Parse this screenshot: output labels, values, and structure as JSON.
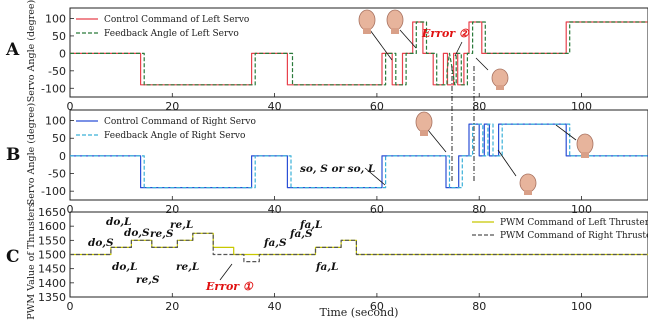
{
  "chart_data": [
    {
      "type": "line",
      "panel_label": "A",
      "ylabel": "Servo Angle (degree)",
      "xlim": [
        0,
        113
      ],
      "ylim": [
        -125,
        130
      ],
      "yticks": [
        -100,
        -50,
        0,
        50,
        100
      ],
      "xticks": [
        0,
        20,
        40,
        60,
        80,
        100
      ],
      "xticklabels": [
        "0",
        "20",
        "40",
        "60",
        "80",
        "100"
      ],
      "grid": false,
      "legend": "top-left",
      "series": [
        {
          "name": "Control Command of Left Servo",
          "color": "#e8414c",
          "dash": "solid",
          "points": [
            [
              0,
              0
            ],
            [
              13.8,
              0
            ],
            [
              13.8,
              -90
            ],
            [
              35.5,
              -90
            ],
            [
              35.5,
              0
            ],
            [
              42.5,
              0
            ],
            [
              42.5,
              -90
            ],
            [
              61,
              -90
            ],
            [
              61,
              0
            ],
            [
              63,
              0
            ],
            [
              63,
              -90
            ],
            [
              65,
              -90
            ],
            [
              65,
              0
            ],
            [
              67,
              0
            ],
            [
              67,
              90
            ],
            [
              69,
              90
            ],
            [
              69,
              0
            ],
            [
              71,
              0
            ],
            [
              71,
              -90
            ],
            [
              73,
              -90
            ],
            [
              73,
              0
            ],
            [
              73.8,
              0
            ],
            [
              73.8,
              -90
            ],
            [
              75,
              -90
            ],
            [
              75,
              0
            ],
            [
              75.8,
              0
            ],
            [
              75.8,
              -90
            ],
            [
              77,
              -90
            ],
            [
              77,
              0
            ],
            [
              78,
              0
            ],
            [
              78,
              90
            ],
            [
              80.5,
              90
            ],
            [
              80.5,
              0
            ],
            [
              97,
              0
            ],
            [
              97,
              90
            ],
            [
              113,
              90
            ]
          ]
        },
        {
          "name": "Feedback Angle of Left Servo",
          "color": "#2a7a3a",
          "dash": "dashed",
          "points": [
            [
              0,
              0
            ],
            [
              14.5,
              0
            ],
            [
              14.5,
              -90
            ],
            [
              36.2,
              -90
            ],
            [
              36.2,
              0
            ],
            [
              43.5,
              0
            ],
            [
              43.5,
              -90
            ],
            [
              61.7,
              -90
            ],
            [
              61.7,
              0
            ],
            [
              63.7,
              0
            ],
            [
              63.7,
              -90
            ],
            [
              65.7,
              -90
            ],
            [
              65.7,
              0
            ],
            [
              67.7,
              0
            ],
            [
              67.7,
              90
            ],
            [
              69.7,
              90
            ],
            [
              69.7,
              0
            ],
            [
              71.7,
              0
            ],
            [
              71.7,
              -90
            ],
            [
              73.7,
              -90
            ],
            [
              73.7,
              -50
            ],
            [
              74.2,
              0
            ],
            [
              74.8,
              -50
            ],
            [
              75.2,
              -90
            ],
            [
              75.5,
              -90
            ],
            [
              75.5,
              0
            ],
            [
              76.5,
              0
            ],
            [
              76.5,
              -90
            ],
            [
              77.7,
              -90
            ],
            [
              77.7,
              0
            ],
            [
              78.7,
              0
            ],
            [
              78.7,
              90
            ],
            [
              81.2,
              90
            ],
            [
              81.2,
              0
            ],
            [
              97.7,
              0
            ],
            [
              97.7,
              90
            ],
            [
              113,
              90
            ]
          ]
        }
      ],
      "annotations": [
        "Error ②"
      ]
    },
    {
      "type": "line",
      "panel_label": "B",
      "ylabel": "Servo Angle (degree)",
      "xlim": [
        0,
        113
      ],
      "ylim": [
        -125,
        130
      ],
      "yticks": [
        -100,
        -50,
        0,
        50,
        100
      ],
      "xticks": [
        0,
        20,
        40,
        60,
        80,
        100
      ],
      "xticklabels": [
        "0",
        "20",
        "40",
        "60",
        "80",
        "100"
      ],
      "grid": false,
      "legend": "top-left",
      "series": [
        {
          "name": "Control Command of Right Servo",
          "color": "#2b4fd6",
          "dash": "solid",
          "points": [
            [
              0,
              0
            ],
            [
              13.8,
              0
            ],
            [
              13.8,
              -90
            ],
            [
              35.5,
              -90
            ],
            [
              35.5,
              0
            ],
            [
              42.5,
              0
            ],
            [
              42.5,
              -90
            ],
            [
              61,
              -90
            ],
            [
              61,
              0
            ],
            [
              73.5,
              0
            ],
            [
              73.5,
              -90
            ],
            [
              76,
              -90
            ],
            [
              76,
              0
            ],
            [
              78,
              0
            ],
            [
              78,
              90
            ],
            [
              80,
              90
            ],
            [
              80,
              0
            ],
            [
              81,
              0
            ],
            [
              81,
              90
            ],
            [
              82,
              90
            ],
            [
              82,
              0
            ],
            [
              83.8,
              0
            ],
            [
              83.8,
              90
            ],
            [
              97,
              90
            ],
            [
              97,
              0
            ],
            [
              113,
              0
            ]
          ]
        },
        {
          "name": "Feedback Angle of Right Servo",
          "color": "#3ab0d8",
          "dash": "dashed",
          "points": [
            [
              0,
              0
            ],
            [
              14.5,
              0
            ],
            [
              14.5,
              -90
            ],
            [
              36.2,
              -90
            ],
            [
              36.2,
              0
            ],
            [
              43.2,
              0
            ],
            [
              43.2,
              -90
            ],
            [
              61.7,
              -90
            ],
            [
              61.7,
              0
            ],
            [
              74.2,
              0
            ],
            [
              74.2,
              -90
            ],
            [
              76.7,
              -90
            ],
            [
              76.7,
              0
            ],
            [
              78.7,
              0
            ],
            [
              78.7,
              90
            ],
            [
              80.7,
              90
            ],
            [
              80.7,
              0
            ],
            [
              81.7,
              0
            ],
            [
              81.7,
              90
            ],
            [
              82.7,
              90
            ],
            [
              82.7,
              0
            ],
            [
              84.5,
              0
            ],
            [
              84.5,
              90
            ],
            [
              97.7,
              90
            ],
            [
              97.7,
              0
            ],
            [
              113,
              0
            ]
          ]
        }
      ],
      "annotations": [
        "so, S or so, L"
      ]
    },
    {
      "type": "line",
      "panel_label": "C",
      "ylabel": "PWM Value of Thrusters",
      "xlabel": "Time (second)",
      "xlim": [
        0,
        113
      ],
      "ylim": [
        1350,
        1650
      ],
      "yticks": [
        1350,
        1400,
        1450,
        1500,
        1550,
        1600,
        1650
      ],
      "xticks": [
        0,
        20,
        40,
        60,
        80,
        100
      ],
      "xticklabels": [
        "0",
        "20",
        "40",
        "60",
        "80",
        "100"
      ],
      "grid": false,
      "legend": "top-right",
      "series": [
        {
          "name": "PWM Command of Left Thruster",
          "color": "#c8c800",
          "dash": "solid",
          "points": [
            [
              0,
              1500
            ],
            [
              8,
              1500
            ],
            [
              8,
              1525
            ],
            [
              12,
              1525
            ],
            [
              12,
              1550
            ],
            [
              16,
              1550
            ],
            [
              16,
              1525
            ],
            [
              21,
              1525
            ],
            [
              21,
              1550
            ],
            [
              24,
              1550
            ],
            [
              24,
              1575
            ],
            [
              28,
              1575
            ],
            [
              28,
              1525
            ],
            [
              32,
              1525
            ],
            [
              32,
              1500
            ],
            [
              48,
              1500
            ],
            [
              48,
              1525
            ],
            [
              53,
              1525
            ],
            [
              53,
              1550
            ],
            [
              56,
              1550
            ],
            [
              56,
              1500
            ],
            [
              113,
              1500
            ]
          ]
        },
        {
          "name": "PWM Command of Right Thruster",
          "color": "#555555",
          "dash": "dashed",
          "points": [
            [
              0,
              1500
            ],
            [
              8,
              1500
            ],
            [
              8,
              1525
            ],
            [
              12,
              1525
            ],
            [
              12,
              1550
            ],
            [
              16,
              1550
            ],
            [
              16,
              1525
            ],
            [
              21,
              1525
            ],
            [
              21,
              1550
            ],
            [
              24,
              1550
            ],
            [
              24,
              1575
            ],
            [
              28,
              1575
            ],
            [
              28,
              1500
            ],
            [
              34,
              1500
            ],
            [
              34,
              1475
            ],
            [
              37,
              1475
            ],
            [
              37,
              1500
            ],
            [
              48,
              1500
            ],
            [
              48,
              1525
            ],
            [
              53,
              1525
            ],
            [
              53,
              1550
            ],
            [
              56,
              1550
            ],
            [
              56,
              1500
            ],
            [
              113,
              1500
            ]
          ]
        }
      ],
      "annotations": [
        "do,S",
        "do,L",
        "do,S",
        "do,L",
        "re,S",
        "re,L",
        "re,S",
        "re,L",
        "Error ①",
        "fa,S",
        "fa,L",
        "fa,S",
        "fa,L"
      ]
    }
  ]
}
